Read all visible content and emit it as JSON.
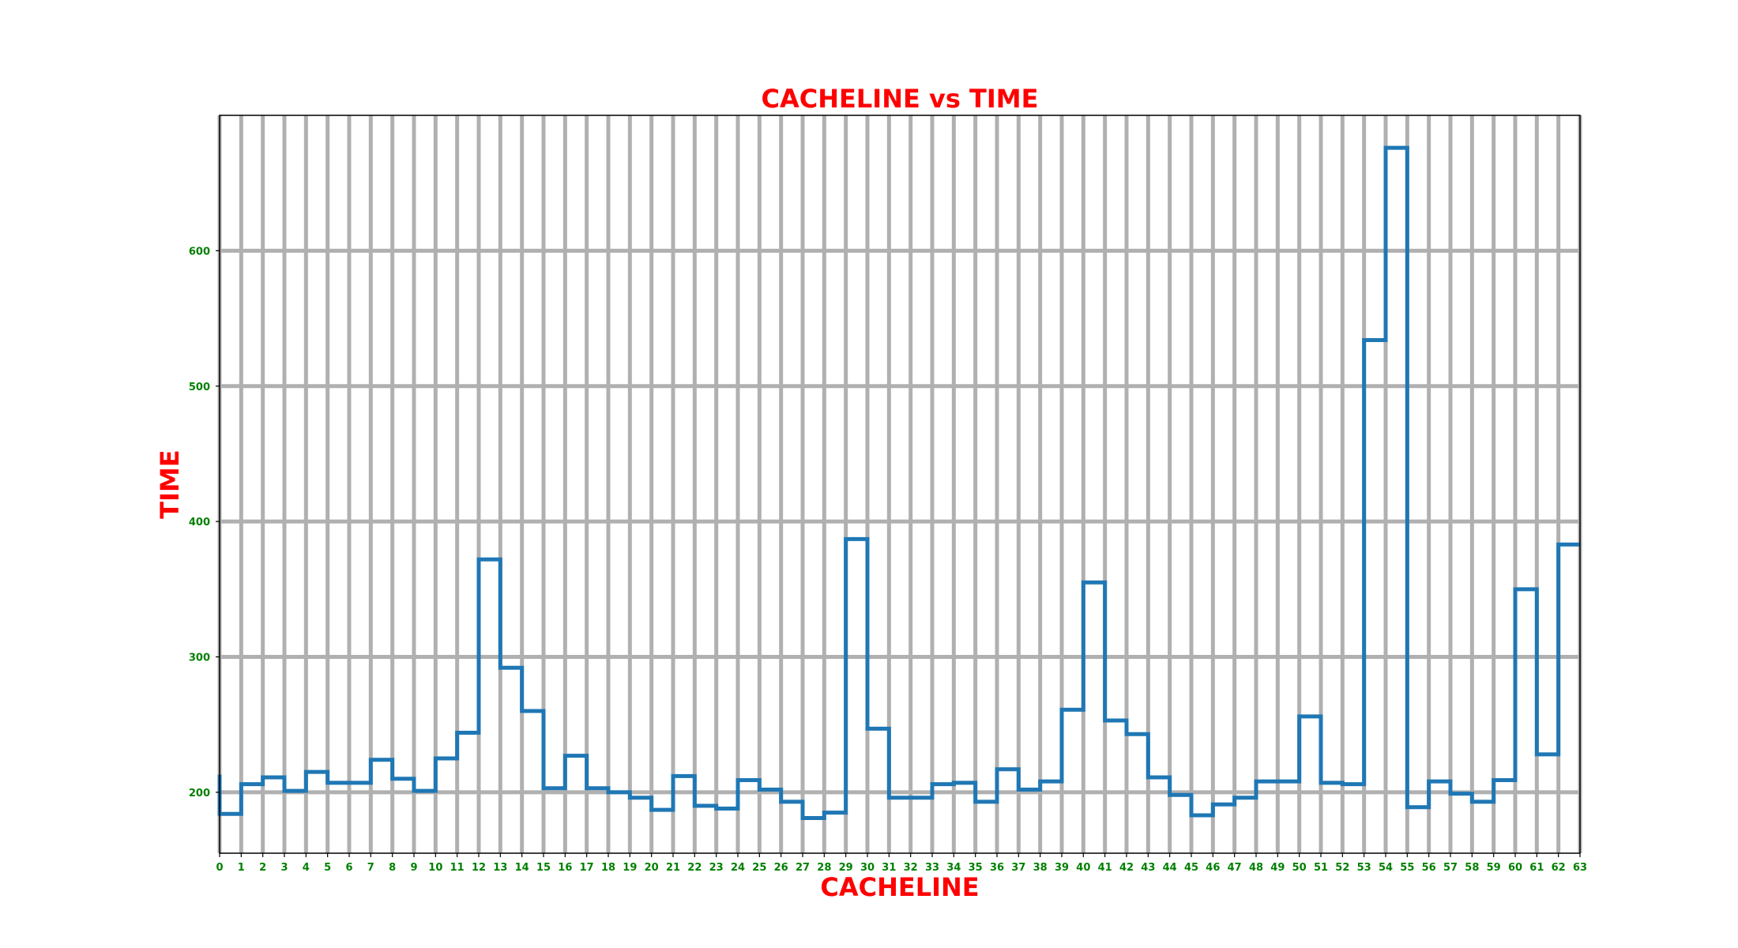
{
  "chart_data": {
    "type": "line",
    "drawstyle": "steps",
    "title": "CACHELINE vs TIME",
    "xlabel": "CACHELINE",
    "ylabel": "TIME",
    "x": [
      0,
      1,
      2,
      3,
      4,
      5,
      6,
      7,
      8,
      9,
      10,
      11,
      12,
      13,
      14,
      15,
      16,
      17,
      18,
      19,
      20,
      21,
      22,
      23,
      24,
      25,
      26,
      27,
      28,
      29,
      30,
      31,
      32,
      33,
      34,
      35,
      36,
      37,
      38,
      39,
      40,
      41,
      42,
      43,
      44,
      45,
      46,
      47,
      48,
      49,
      50,
      51,
      52,
      53,
      54,
      55,
      56,
      57,
      58,
      59,
      60,
      61,
      62,
      63
    ],
    "xticks": [
      0,
      1,
      2,
      3,
      4,
      5,
      6,
      7,
      8,
      9,
      10,
      11,
      12,
      13,
      14,
      15,
      16,
      17,
      18,
      19,
      20,
      21,
      22,
      23,
      24,
      25,
      26,
      27,
      28,
      29,
      30,
      31,
      32,
      33,
      34,
      35,
      36,
      37,
      38,
      39,
      40,
      41,
      42,
      43,
      44,
      45,
      46,
      47,
      48,
      49,
      50,
      51,
      52,
      53,
      54,
      55,
      56,
      57,
      58,
      59,
      60,
      61,
      62,
      63
    ],
    "yticks": [
      200,
      300,
      400,
      500,
      600
    ],
    "xlim": [
      0,
      63
    ],
    "ylim": [
      155,
      700
    ],
    "series": [
      {
        "values": [
          213,
          184,
          206,
          211,
          201,
          215,
          207,
          207,
          224,
          210,
          201,
          225,
          244,
          372,
          292,
          260,
          203,
          227,
          203,
          200,
          196,
          187,
          212,
          190,
          188,
          209,
          202,
          193,
          181,
          185,
          387,
          247,
          196,
          196,
          206,
          207,
          193,
          217,
          202,
          208,
          261,
          355,
          253,
          243,
          211,
          198,
          183,
          191,
          196,
          208,
          208,
          256,
          207,
          206,
          534,
          676,
          189,
          208,
          199,
          193,
          209,
          350,
          228,
          383
        ]
      }
    ],
    "grid": true,
    "colors": {
      "line": "#1f77b4",
      "grid": "#b0b0b0",
      "title": "#ff0000",
      "axis_labels": "#ff0000",
      "ticks": "#008000"
    }
  }
}
